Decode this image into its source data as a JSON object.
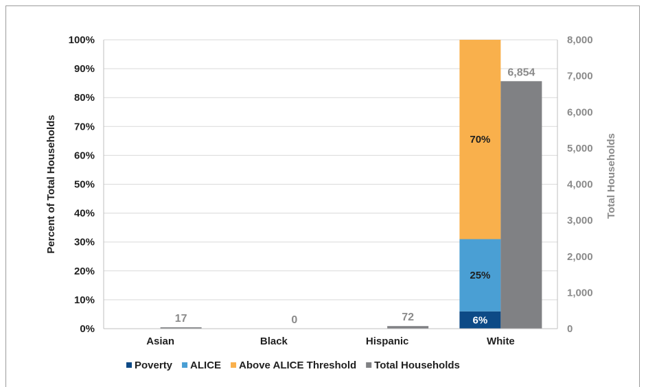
{
  "chart_data": {
    "type": "bar",
    "categories": [
      "Asian",
      "Black",
      "Hispanic",
      "White"
    ],
    "stacked_series": [
      {
        "name": "Poverty",
        "color": "#0d4a86",
        "values": [
          null,
          null,
          null,
          6
        ],
        "labels": [
          "",
          "",
          "",
          "6%"
        ]
      },
      {
        "name": "ALICE",
        "color": "#4a9fd4",
        "values": [
          null,
          null,
          null,
          25
        ],
        "labels": [
          "",
          "",
          "",
          "25%"
        ]
      },
      {
        "name": "Above ALICE Threshold",
        "color": "#f9b04c",
        "values": [
          null,
          null,
          null,
          70
        ],
        "labels": [
          "",
          "",
          "",
          "70%"
        ]
      }
    ],
    "total_series": {
      "name": "Total Households",
      "color": "#808184",
      "values": [
        17,
        0,
        72,
        6854
      ],
      "labels": [
        "17",
        "0",
        "72",
        "6,854"
      ]
    },
    "ylabel_left": "Percent of Total Households",
    "ylabel_right": "Total Households",
    "ylim_left": [
      0,
      100
    ],
    "ylim_right": [
      0,
      8000
    ],
    "yticks_left": [
      "0%",
      "10%",
      "20%",
      "30%",
      "40%",
      "50%",
      "60%",
      "70%",
      "80%",
      "90%",
      "100%"
    ],
    "yticks_right": [
      "0",
      "1,000",
      "2,000",
      "3,000",
      "4,000",
      "5,000",
      "6,000",
      "7,000",
      "8,000"
    ],
    "grid": true,
    "legend_position": "bottom"
  }
}
